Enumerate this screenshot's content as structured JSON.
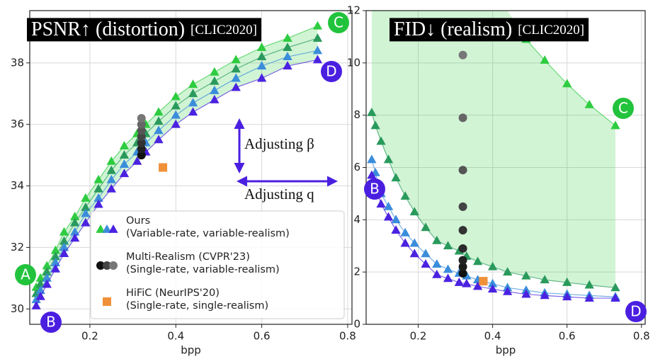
{
  "chart_data": [
    {
      "type": "scatter",
      "title": "PSNR↑ (distortion)",
      "title_suffix": "[CLIC2020]",
      "x_label": "bpp",
      "xlim": [
        0.06,
        0.81
      ],
      "ylim": [
        29.5,
        39.7
      ],
      "xticks": [
        0.2,
        0.4,
        0.6,
        0.8
      ],
      "yticks": [
        30,
        32,
        34,
        36,
        38
      ],
      "grid": true,
      "series": [
        {
          "color": "#2ecc40",
          "marker": "triangle",
          "x": [
            0.075,
            0.085,
            0.1,
            0.12,
            0.14,
            0.165,
            0.19,
            0.22,
            0.25,
            0.28,
            0.31,
            0.33,
            0.36,
            0.4,
            0.44,
            0.49,
            0.54,
            0.6,
            0.66,
            0.73
          ],
          "values": [
            30.7,
            31.0,
            31.4,
            31.9,
            32.5,
            33.0,
            33.6,
            34.2,
            34.8,
            35.3,
            35.7,
            36.0,
            36.4,
            36.9,
            37.3,
            37.7,
            38.1,
            38.5,
            38.8,
            39.2
          ]
        },
        {
          "color": "#2a9a5c",
          "marker": "triangle",
          "x": [
            0.075,
            0.085,
            0.1,
            0.12,
            0.14,
            0.165,
            0.19,
            0.22,
            0.25,
            0.28,
            0.31,
            0.33,
            0.36,
            0.4,
            0.44,
            0.49,
            0.54,
            0.6,
            0.66,
            0.73
          ],
          "values": [
            30.5,
            30.8,
            31.2,
            31.7,
            32.2,
            32.8,
            33.3,
            33.9,
            34.5,
            35.0,
            35.4,
            35.7,
            36.1,
            36.6,
            37.0,
            37.4,
            37.8,
            38.2,
            38.5,
            38.8
          ]
        },
        {
          "color": "#3b8ddb",
          "marker": "triangle",
          "x": [
            0.075,
            0.085,
            0.1,
            0.12,
            0.14,
            0.165,
            0.19,
            0.22,
            0.25,
            0.28,
            0.31,
            0.33,
            0.36,
            0.4,
            0.44,
            0.49,
            0.54,
            0.6,
            0.66,
            0.73
          ],
          "values": [
            30.3,
            30.6,
            31.0,
            31.5,
            32.0,
            32.5,
            33.1,
            33.6,
            34.2,
            34.7,
            35.1,
            35.4,
            35.8,
            36.3,
            36.7,
            37.1,
            37.5,
            37.9,
            38.2,
            38.4
          ]
        },
        {
          "color": "#4a22e0",
          "marker": "triangle",
          "x": [
            0.075,
            0.085,
            0.1,
            0.12,
            0.14,
            0.165,
            0.19,
            0.22,
            0.25,
            0.28,
            0.31,
            0.33,
            0.36,
            0.4,
            0.44,
            0.49,
            0.54,
            0.6,
            0.66,
            0.73
          ],
          "values": [
            30.1,
            30.4,
            30.8,
            31.3,
            31.8,
            32.3,
            32.8,
            33.4,
            33.9,
            34.4,
            34.8,
            35.1,
            35.5,
            36.0,
            36.4,
            36.8,
            37.2,
            37.5,
            37.9,
            38.1
          ]
        },
        {
          "color": "#555555",
          "marker": "circle",
          "colors": [
            "#111111",
            "#222222",
            "#333333",
            "#444444",
            "#555555",
            "#666666",
            "#777777"
          ],
          "x": [
            0.32,
            0.32,
            0.32,
            0.32,
            0.32,
            0.32,
            0.32
          ],
          "values": [
            35.0,
            35.2,
            35.4,
            35.6,
            35.8,
            36.0,
            36.2
          ]
        },
        {
          "color": "#f0913a",
          "marker": "square",
          "x": [
            0.37
          ],
          "values": [
            34.6
          ]
        }
      ],
      "legend": {
        "position": "lower right",
        "entries": [
          {
            "label": "Ours",
            "detail": "(Variable-rate, variable-realism)",
            "colors": [
              "#2ecc40",
              "#3b8ddb",
              "#4a22e0"
            ],
            "marker": "triangle"
          },
          {
            "label": "Multi-Realism (CVPR'23)",
            "detail": "(Single-rate, variable-realism)",
            "colors": [
              "#111111",
              "#444444",
              "#777777"
            ],
            "marker": "circle"
          },
          {
            "label": "HiFiC (NeurIPS'20)",
            "detail": "(Single-rate, single-realism)",
            "colors": [
              "#f0913a"
            ],
            "marker": "square"
          }
        ]
      },
      "annotations": [
        "Adjusting β",
        "Adjusting q"
      ],
      "badges": [
        {
          "text": "A",
          "color": "#22c33c"
        },
        {
          "text": "B",
          "color": "#4a1fe0"
        },
        {
          "text": "C",
          "color": "#22c33c"
        },
        {
          "text": "D",
          "color": "#4a1fe0"
        }
      ]
    },
    {
      "type": "scatter",
      "title": "FID↓ (realism)",
      "title_suffix": "[CLIC2020]",
      "x_label": "bpp",
      "xlim": [
        0.06,
        0.81
      ],
      "ylim": [
        0,
        12
      ],
      "xticks": [
        0.2,
        0.4,
        0.6,
        0.8
      ],
      "yticks": [
        0,
        2,
        4,
        6,
        8,
        10,
        12
      ],
      "grid": true,
      "series": [
        {
          "color": "#2ecc40",
          "marker": "triangle",
          "x": [
            0.075,
            0.085,
            0.1,
            0.12,
            0.14,
            0.165,
            0.19,
            0.22,
            0.25,
            0.28,
            0.31,
            0.33,
            0.36,
            0.4,
            0.44,
            0.49,
            0.54,
            0.6,
            0.66,
            0.73
          ],
          "values": [
            null,
            null,
            null,
            null,
            null,
            null,
            null,
            null,
            null,
            null,
            null,
            null,
            null,
            null,
            null,
            10.9,
            10.1,
            9.2,
            8.4,
            7.6
          ]
        },
        {
          "color": "#2a9a5c",
          "marker": "triangle",
          "x": [
            0.075,
            0.085,
            0.1,
            0.12,
            0.14,
            0.165,
            0.19,
            0.22,
            0.25,
            0.28,
            0.31,
            0.33,
            0.36,
            0.4,
            0.44,
            0.49,
            0.54,
            0.6,
            0.66,
            0.73
          ],
          "values": [
            8.1,
            7.6,
            7.0,
            6.3,
            5.6,
            4.9,
            4.3,
            3.7,
            3.2,
            3.0,
            2.8,
            2.6,
            2.4,
            2.2,
            2.0,
            1.85,
            1.7,
            1.6,
            1.5,
            1.4
          ]
        },
        {
          "color": "#3b8ddb",
          "marker": "triangle",
          "x": [
            0.075,
            0.085,
            0.1,
            0.12,
            0.14,
            0.165,
            0.19,
            0.22,
            0.25,
            0.28,
            0.31,
            0.33,
            0.36,
            0.4,
            0.44,
            0.49,
            0.54,
            0.6,
            0.66,
            0.73
          ],
          "values": [
            6.3,
            5.8,
            5.0,
            4.5,
            4.0,
            3.5,
            3.1,
            2.7,
            2.3,
            2.1,
            1.95,
            1.85,
            1.7,
            1.55,
            1.4,
            1.3,
            1.2,
            1.15,
            1.1,
            1.05
          ]
        },
        {
          "color": "#4a22e0",
          "marker": "triangle",
          "x": [
            0.075,
            0.085,
            0.1,
            0.12,
            0.14,
            0.165,
            0.19,
            0.22,
            0.25,
            0.28,
            0.31,
            0.33,
            0.36,
            0.4,
            0.44,
            0.49,
            0.54,
            0.6,
            0.66,
            0.73
          ],
          "values": [
            5.7,
            5.3,
            4.6,
            4.1,
            3.6,
            3.1,
            2.7,
            2.3,
            1.9,
            1.75,
            1.6,
            1.55,
            1.45,
            1.35,
            1.25,
            1.15,
            1.1,
            1.05,
            1.0,
            1.0
          ]
        },
        {
          "color": "#555555",
          "marker": "circle",
          "colors": [
            "#111111",
            "#1a1a1a",
            "#222222",
            "#2a2a2a",
            "#333333",
            "#444444",
            "#555555",
            "#666666",
            "#777777"
          ],
          "x": [
            0.32,
            0.32,
            0.32,
            0.32,
            0.32,
            0.32,
            0.32,
            0.32,
            0.32
          ],
          "values": [
            1.95,
            2.2,
            2.45,
            2.9,
            3.6,
            4.5,
            5.9,
            7.9,
            10.3
          ]
        },
        {
          "color": "#f0913a",
          "marker": "square",
          "x": [
            0.375
          ],
          "values": [
            1.65
          ]
        }
      ],
      "badges": [
        {
          "text": "B",
          "color": "#4a1fe0"
        },
        {
          "text": "C",
          "color": "#22c33c"
        },
        {
          "text": "D",
          "color": "#4a1fe0"
        }
      ]
    }
  ]
}
